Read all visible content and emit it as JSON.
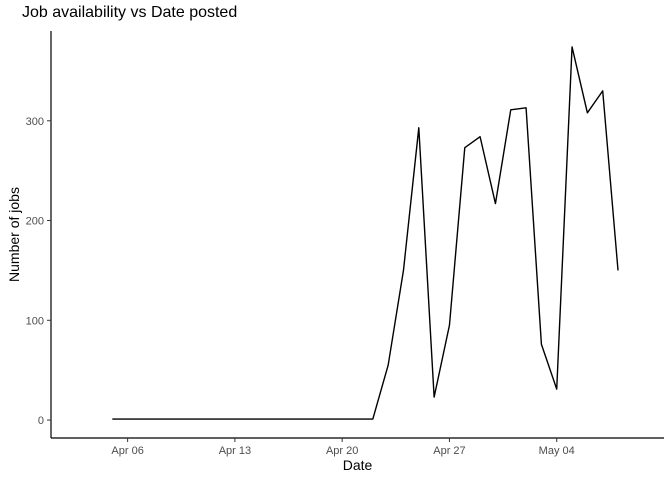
{
  "chart_data": {
    "type": "line",
    "title": "Job availability vs Date posted",
    "xlabel": "Date",
    "ylabel": "Number of jobs",
    "x_tick_labels": [
      "Apr 06",
      "Apr 13",
      "Apr 20",
      "Apr 27",
      "May 04"
    ],
    "x_tick_dates": [
      "2024-04-06",
      "2024-04-13",
      "2024-04-20",
      "2024-04-27",
      "2024-05-04"
    ],
    "y_ticks": [
      0,
      100,
      200,
      300
    ],
    "xlim": [
      "2024-04-01",
      "2024-05-11"
    ],
    "ylim": [
      -18,
      390
    ],
    "grid": false,
    "line_color": "#000000",
    "series": [
      {
        "x": [
          "2024-04-05",
          "2024-04-06",
          "2024-04-07",
          "2024-04-08",
          "2024-04-09",
          "2024-04-10",
          "2024-04-11",
          "2024-04-12",
          "2024-04-13",
          "2024-04-14",
          "2024-04-15",
          "2024-04-16",
          "2024-04-17",
          "2024-04-18",
          "2024-04-19",
          "2024-04-20",
          "2024-04-21",
          "2024-04-22",
          "2024-04-23",
          "2024-04-24",
          "2024-04-25",
          "2024-04-26",
          "2024-04-27",
          "2024-04-28",
          "2024-04-29",
          "2024-04-30",
          "2024-05-01",
          "2024-05-02",
          "2024-05-03",
          "2024-05-04",
          "2024-05-05",
          "2024-05-06",
          "2024-05-07",
          "2024-05-08"
        ],
        "y": [
          1,
          1,
          1,
          1,
          1,
          1,
          1,
          1,
          1,
          1,
          1,
          1,
          1,
          1,
          1,
          1,
          1,
          1,
          55,
          150,
          293,
          23,
          95,
          273,
          284,
          217,
          311,
          313,
          76,
          31,
          374,
          308,
          330,
          150
        ]
      }
    ]
  }
}
